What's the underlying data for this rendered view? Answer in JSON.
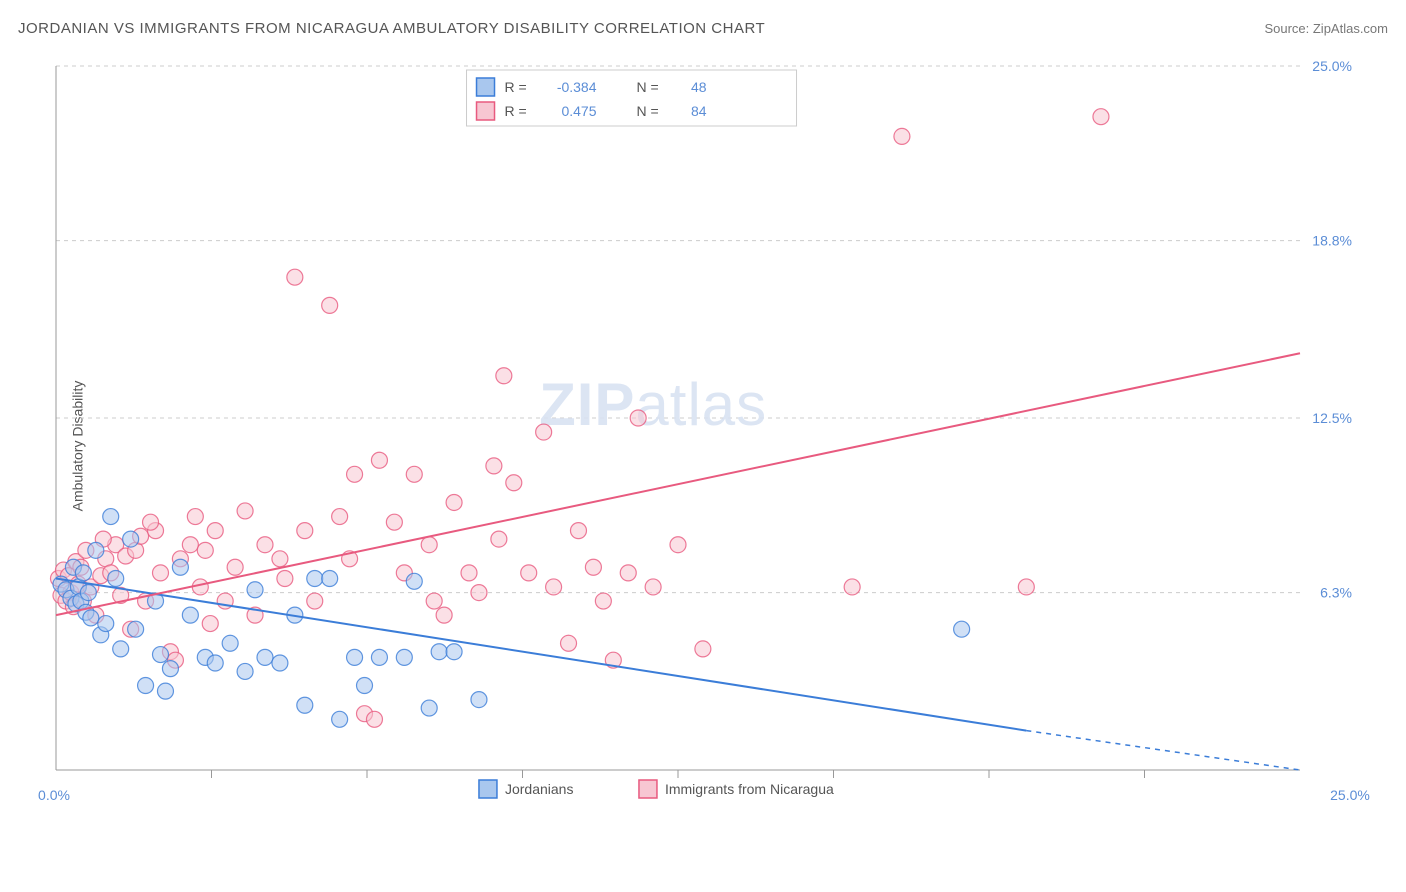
{
  "header": {
    "title": "JORDANIAN VS IMMIGRANTS FROM NICARAGUA AMBULATORY DISABILITY CORRELATION CHART",
    "source_prefix": "Source: ",
    "source_name": "ZipAtlas.com"
  },
  "chart": {
    "type": "scatter",
    "ylabel": "Ambulatory Disability",
    "background_color": "#ffffff",
    "grid_color": "#cccccc",
    "axis_color": "#999999",
    "xlim": [
      0,
      25
    ],
    "ylim": [
      0,
      25
    ],
    "x_ticks_major": [
      0,
      25
    ],
    "x_ticks_minor": [
      3.125,
      6.25,
      9.375,
      12.5,
      15.625,
      18.75,
      21.875
    ],
    "y_ticks": [
      6.3,
      12.5,
      18.8,
      25.0
    ],
    "y_tick_labels": [
      "6.3%",
      "12.5%",
      "18.8%",
      "25.0%"
    ],
    "x_tick_labels": [
      "0.0%",
      "25.0%"
    ],
    "marker_radius": 8,
    "marker_opacity": 0.55,
    "series": {
      "blue": {
        "label": "Jordanians",
        "fill": "#a9c7ee",
        "stroke": "#3b7dd8",
        "R": "-0.384",
        "N": "48",
        "trend": {
          "x1": 0,
          "y1": 6.8,
          "x2": 19.5,
          "y2": 1.4,
          "x2_dash": 25,
          "y2_dash": 0
        },
        "points": [
          [
            0.1,
            6.6
          ],
          [
            0.2,
            6.4
          ],
          [
            0.3,
            6.1
          ],
          [
            0.35,
            7.2
          ],
          [
            0.4,
            5.9
          ],
          [
            0.45,
            6.5
          ],
          [
            0.5,
            6.0
          ],
          [
            0.55,
            7.0
          ],
          [
            0.6,
            5.6
          ],
          [
            0.65,
            6.3
          ],
          [
            0.7,
            5.4
          ],
          [
            0.8,
            7.8
          ],
          [
            0.9,
            4.8
          ],
          [
            1.0,
            5.2
          ],
          [
            1.1,
            9.0
          ],
          [
            1.2,
            6.8
          ],
          [
            1.3,
            4.3
          ],
          [
            1.5,
            8.2
          ],
          [
            1.6,
            5.0
          ],
          [
            1.8,
            3.0
          ],
          [
            2.0,
            6.0
          ],
          [
            2.1,
            4.1
          ],
          [
            2.3,
            3.6
          ],
          [
            2.5,
            7.2
          ],
          [
            2.7,
            5.5
          ],
          [
            3.0,
            4.0
          ],
          [
            3.2,
            3.8
          ],
          [
            3.5,
            4.5
          ],
          [
            3.8,
            3.5
          ],
          [
            4.0,
            6.4
          ],
          [
            4.2,
            4.0
          ],
          [
            4.5,
            3.8
          ],
          [
            4.8,
            5.5
          ],
          [
            5.0,
            2.3
          ],
          [
            5.2,
            6.8
          ],
          [
            5.5,
            6.8
          ],
          [
            5.7,
            1.8
          ],
          [
            6.0,
            4.0
          ],
          [
            6.2,
            3.0
          ],
          [
            6.5,
            4.0
          ],
          [
            7.0,
            4.0
          ],
          [
            7.2,
            6.7
          ],
          [
            7.5,
            2.2
          ],
          [
            7.7,
            4.2
          ],
          [
            8.0,
            4.2
          ],
          [
            8.5,
            2.5
          ],
          [
            18.2,
            5.0
          ],
          [
            2.2,
            2.8
          ]
        ]
      },
      "pink": {
        "label": "Immigrants from Nicaragua",
        "fill": "#f7c6d2",
        "stroke": "#e85a7f",
        "R": "0.475",
        "N": "84",
        "trend": {
          "x1": 0,
          "y1": 5.5,
          "x2": 25,
          "y2": 14.8
        },
        "points": [
          [
            0.05,
            6.8
          ],
          [
            0.1,
            6.2
          ],
          [
            0.15,
            7.1
          ],
          [
            0.2,
            6.0
          ],
          [
            0.25,
            6.9
          ],
          [
            0.3,
            6.3
          ],
          [
            0.35,
            5.8
          ],
          [
            0.4,
            7.4
          ],
          [
            0.45,
            6.6
          ],
          [
            0.5,
            7.2
          ],
          [
            0.55,
            6.0
          ],
          [
            0.6,
            7.8
          ],
          [
            0.7,
            6.5
          ],
          [
            0.8,
            5.5
          ],
          [
            0.9,
            6.9
          ],
          [
            1.0,
            7.5
          ],
          [
            1.1,
            7.0
          ],
          [
            1.2,
            8.0
          ],
          [
            1.3,
            6.2
          ],
          [
            1.4,
            7.6
          ],
          [
            1.5,
            5.0
          ],
          [
            1.6,
            7.8
          ],
          [
            1.7,
            8.3
          ],
          [
            1.8,
            6.0
          ],
          [
            2.0,
            8.5
          ],
          [
            2.1,
            7.0
          ],
          [
            2.3,
            4.2
          ],
          [
            2.5,
            7.5
          ],
          [
            2.7,
            8.0
          ],
          [
            2.9,
            6.5
          ],
          [
            3.0,
            7.8
          ],
          [
            3.2,
            8.5
          ],
          [
            3.4,
            6.0
          ],
          [
            3.6,
            7.2
          ],
          [
            3.8,
            9.2
          ],
          [
            4.0,
            5.5
          ],
          [
            4.2,
            8.0
          ],
          [
            4.5,
            7.5
          ],
          [
            4.8,
            17.5
          ],
          [
            5.0,
            8.5
          ],
          [
            5.2,
            6.0
          ],
          [
            5.5,
            16.5
          ],
          [
            5.7,
            9.0
          ],
          [
            6.0,
            10.5
          ],
          [
            6.2,
            2.0
          ],
          [
            6.5,
            11.0
          ],
          [
            6.8,
            8.8
          ],
          [
            7.0,
            7.0
          ],
          [
            7.2,
            10.5
          ],
          [
            7.5,
            8.0
          ],
          [
            7.8,
            5.5
          ],
          [
            8.0,
            9.5
          ],
          [
            8.3,
            7.0
          ],
          [
            8.5,
            6.3
          ],
          [
            8.8,
            10.8
          ],
          [
            9.0,
            14.0
          ],
          [
            9.2,
            10.2
          ],
          [
            9.5,
            7.0
          ],
          [
            9.8,
            12.0
          ],
          [
            10.0,
            6.5
          ],
          [
            10.3,
            4.5
          ],
          [
            10.5,
            8.5
          ],
          [
            10.8,
            7.2
          ],
          [
            11.0,
            6.0
          ],
          [
            11.2,
            3.9
          ],
          [
            11.5,
            7.0
          ],
          [
            11.7,
            12.5
          ],
          [
            12.0,
            6.5
          ],
          [
            12.5,
            8.0
          ],
          [
            13.0,
            4.3
          ],
          [
            16.0,
            6.5
          ],
          [
            17.0,
            22.5
          ],
          [
            19.5,
            6.5
          ],
          [
            21.0,
            23.2
          ],
          [
            2.4,
            3.9
          ],
          [
            3.1,
            5.2
          ],
          [
            4.6,
            6.8
          ],
          [
            5.9,
            7.5
          ],
          [
            1.9,
            8.8
          ],
          [
            0.95,
            8.2
          ],
          [
            2.8,
            9.0
          ],
          [
            6.4,
            1.8
          ],
          [
            7.6,
            6.0
          ],
          [
            8.9,
            8.2
          ]
        ]
      }
    },
    "legend_top": {
      "x_center": 0.5,
      "rows": [
        {
          "swatch": "blue",
          "R_label": "R =",
          "N_label": "N ="
        },
        {
          "swatch": "pink",
          "R_label": "R =",
          "N_label": "N ="
        }
      ]
    },
    "legend_bottom": {
      "items": [
        {
          "swatch": "blue",
          "key": "blue"
        },
        {
          "swatch": "pink",
          "key": "pink"
        }
      ]
    },
    "watermark": {
      "bold": "ZIP",
      "rest": "atlas"
    }
  }
}
